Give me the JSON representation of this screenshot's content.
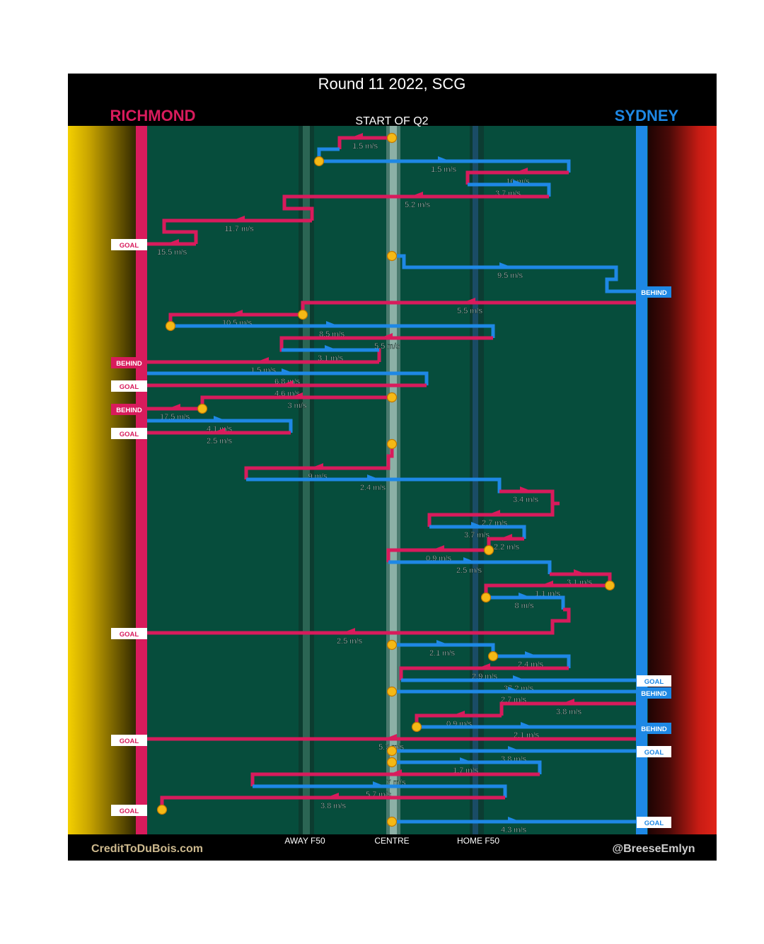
{
  "title": "Round 11 2022, SCG",
  "subtitle": "START OF Q2",
  "teams": {
    "left": {
      "name": "RICHMOND",
      "color": "#d81b5c"
    },
    "right": {
      "name": "SYDNEY",
      "color": "#1e88e5"
    }
  },
  "axis_labels": [
    "AWAY F50",
    "CENTRE",
    "HOME F50"
  ],
  "credits": {
    "left": "CreditToDuBois.com",
    "right": "@BreeseEmlyn"
  },
  "colors": {
    "field": "#064d3c",
    "bounce_dot": "#f5b915",
    "richmond": "#d81b5c",
    "sydney": "#1e88e5",
    "background_left": "#f4d000",
    "background_right": "#e02418"
  },
  "chart_data": {
    "type": "line",
    "description_units": "speed in m/s per chain segment",
    "chains": [
      {
        "team": "richmond",
        "speed": "1.5 m/s"
      },
      {
        "team": "sydney",
        "speed": "1.5 m/s"
      },
      {
        "team": "richmond",
        "speed": "16 m/s"
      },
      {
        "team": "sydney",
        "speed": "3.7 m/s"
      },
      {
        "team": "richmond",
        "speed": "5.2 m/s"
      },
      {
        "team": "richmond",
        "speed": "11.7 m/s"
      },
      {
        "team": "richmond",
        "speed": "15.5 m/s",
        "outcome": "GOAL"
      },
      {
        "team": "sydney",
        "speed": "9.5 m/s",
        "outcome": "BEHIND"
      },
      {
        "team": "richmond",
        "speed": "5.5 m/s"
      },
      {
        "team": "richmond",
        "speed": "10.5 m/s"
      },
      {
        "team": "sydney",
        "speed": "8.5 m/s"
      },
      {
        "team": "richmond",
        "speed": "5.5 m/s"
      },
      {
        "team": "sydney",
        "speed": "3.1 m/s"
      },
      {
        "team": "richmond",
        "speed": "1.5 m/s",
        "outcome": "BEHIND"
      },
      {
        "team": "sydney",
        "speed": "6.8 m/s"
      },
      {
        "team": "richmond",
        "speed": "4.6 m/s",
        "outcome": "GOAL"
      },
      {
        "team": "richmond",
        "speed": "3 m/s"
      },
      {
        "team": "richmond",
        "speed": "17.5 m/s",
        "outcome": "BEHIND"
      },
      {
        "team": "sydney",
        "speed": "4.1 m/s"
      },
      {
        "team": "richmond",
        "speed": "2.5 m/s",
        "outcome": "GOAL"
      },
      {
        "team": "richmond",
        "speed": "9 m/s"
      },
      {
        "team": "sydney",
        "speed": "2.4 m/s"
      },
      {
        "team": "richmond",
        "speed": "3.4 m/s"
      },
      {
        "team": "richmond",
        "speed": "2.7 m/s"
      },
      {
        "team": "sydney",
        "speed": "3.7 m/s"
      },
      {
        "team": "richmond",
        "speed": "2.2 m/s"
      },
      {
        "team": "richmond",
        "speed": "0.9 m/s"
      },
      {
        "team": "sydney",
        "speed": "2.5 m/s"
      },
      {
        "team": "richmond",
        "speed": "3.1 m/s"
      },
      {
        "team": "richmond",
        "speed": "1.1 m/s"
      },
      {
        "team": "sydney",
        "speed": "8 m/s"
      },
      {
        "team": "richmond",
        "speed": "2.5 m/s",
        "outcome": "GOAL"
      },
      {
        "team": "sydney",
        "speed": "2.1 m/s"
      },
      {
        "team": "sydney",
        "speed": "2.4 m/s"
      },
      {
        "team": "richmond",
        "speed": "2.9 m/s"
      },
      {
        "team": "sydney",
        "speed": "37.2 m/s",
        "outcome": "GOAL"
      },
      {
        "team": "sydney",
        "speed": "2.7 m/s",
        "outcome": "BEHIND"
      },
      {
        "team": "richmond",
        "speed": "3.8 m/s"
      },
      {
        "team": "richmond",
        "speed": "0.9 m/s"
      },
      {
        "team": "sydney",
        "speed": "2.1 m/s",
        "outcome": "BEHIND"
      },
      {
        "team": "richmond",
        "speed": "5.7 m/s",
        "outcome": "GOAL"
      },
      {
        "team": "sydney",
        "speed": "3.8 m/s",
        "outcome": "GOAL"
      },
      {
        "team": "sydney",
        "speed": "1.7 m/s"
      },
      {
        "team": "richmond",
        "speed": "7 m/s"
      },
      {
        "team": "sydney",
        "speed": "5.7 m/s"
      },
      {
        "team": "richmond",
        "speed": "3.8 m/s",
        "outcome": "GOAL"
      },
      {
        "team": "sydney",
        "speed": "4.3 m/s",
        "outcome": "GOAL"
      }
    ]
  }
}
